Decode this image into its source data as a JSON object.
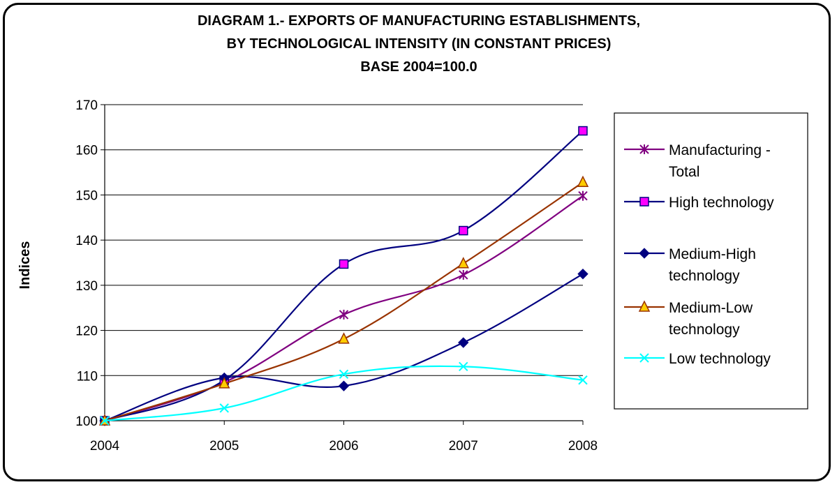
{
  "chart_data": {
    "type": "line",
    "title_lines": [
      "DIAGRAM 1.- EXPORTS OF MANUFACTURING ESTABLISHMENTS,",
      "BY TECHNOLOGICAL INTENSITY (IN CONSTANT PRICES)",
      "BASE 2004=100.0"
    ],
    "ylabel": "Indices",
    "xlabel": "",
    "categories": [
      "2004",
      "2005",
      "2006",
      "2007",
      "2008"
    ],
    "ylim": [
      100,
      170
    ],
    "yticks": [
      "100",
      "110",
      "120",
      "130",
      "140",
      "150",
      "160",
      "170"
    ],
    "grid": true,
    "legend_position": "right",
    "series": [
      {
        "name": "Manufacturing - Total",
        "legend_lines": [
          "Manufacturing -",
          "Total"
        ],
        "color": "#800080",
        "marker": "star",
        "values": [
          100,
          108.5,
          123.5,
          132.3,
          149.8
        ]
      },
      {
        "name": "High technology",
        "legend_lines": [
          "High technology"
        ],
        "color": "#000080",
        "marker": "square",
        "marker_fill": "#FF00FF",
        "values": [
          100,
          109,
          134.7,
          142.1,
          164.2
        ]
      },
      {
        "name": "Medium-High technology",
        "legend_lines": [
          "Medium-High",
          "technology"
        ],
        "color": "#000080",
        "marker": "diamond",
        "values": [
          100,
          109.5,
          107.7,
          117.3,
          132.5
        ]
      },
      {
        "name": "Medium-Low technology",
        "legend_lines": [
          "Medium-Low",
          "technology"
        ],
        "color": "#993300",
        "marker": "triangle",
        "marker_fill": "#FFCC00",
        "values": [
          100,
          108.2,
          118.1,
          134.8,
          152.8
        ]
      },
      {
        "name": "Low technology",
        "legend_lines": [
          "Low technology"
        ],
        "color": "#00FFFF",
        "marker": "x",
        "values": [
          100,
          102.8,
          110.3,
          112,
          109
        ]
      }
    ]
  }
}
